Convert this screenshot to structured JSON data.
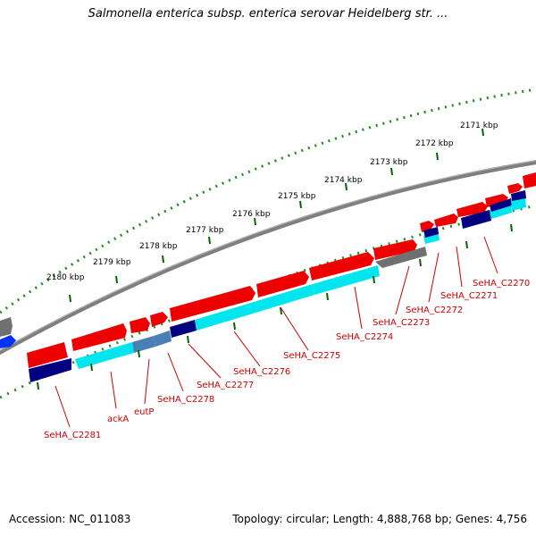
{
  "title": "Salmonella enterica subsp. enterica serovar Heidelberg str. ...",
  "footer": {
    "accession": "Accession: NC_011083",
    "summary": "Topology: circular; Length: 4,888,768 bp; Genes: 4,756"
  },
  "colors": {
    "forward_gene": "#ee0000",
    "reverse_gene": "#00e5ee",
    "reverse_dark": "#00007a",
    "pseudo": "#707070",
    "backbone": "#7f7f7f",
    "ticks": "#228b22",
    "label": "#cc0000"
  },
  "scale": {
    "unit": "kbp",
    "ticks": [
      {
        "label": "2171 kbp"
      },
      {
        "label": "2172 kbp"
      },
      {
        "label": "2173 kbp"
      },
      {
        "label": "2174 kbp"
      },
      {
        "label": "2175 kbp"
      },
      {
        "label": "2176 kbp"
      },
      {
        "label": "2177 kbp"
      },
      {
        "label": "2178 kbp"
      },
      {
        "label": "2179 kbp"
      },
      {
        "label": "2180 kbp"
      }
    ]
  },
  "gene_labels": [
    {
      "text": "SeHA_C2270"
    },
    {
      "text": "SeHA_C2271"
    },
    {
      "text": "SeHA_C2272"
    },
    {
      "text": "SeHA_C2273"
    },
    {
      "text": "SeHA_C2274"
    },
    {
      "text": "SeHA_C2275"
    },
    {
      "text": "SeHA_C2276"
    },
    {
      "text": "SeHA_C2277"
    },
    {
      "text": "SeHA_C2278"
    },
    {
      "text": "eutP"
    },
    {
      "text": "ackA"
    },
    {
      "text": "SeHA_C2281"
    }
  ]
}
